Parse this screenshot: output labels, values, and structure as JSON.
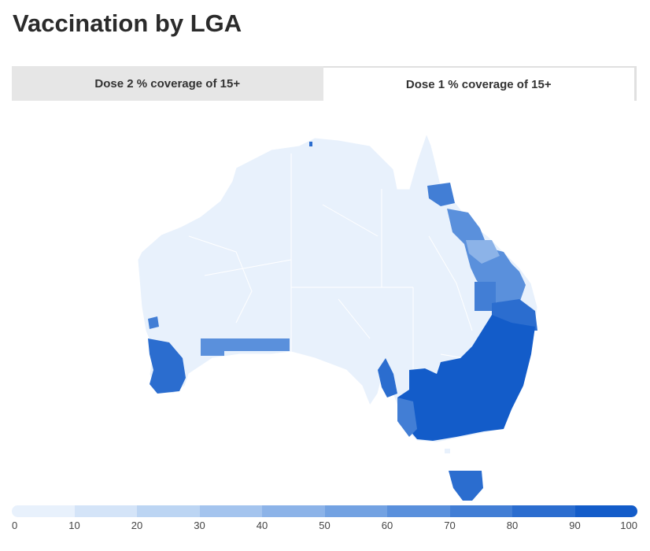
{
  "title": "Vaccination by LGA",
  "tabs": [
    {
      "label": "Dose 2 % coverage of 15+",
      "selected": false
    },
    {
      "label": "Dose 1 % coverage of 15+",
      "selected": true
    }
  ],
  "legend": {
    "ticks": [
      "0",
      "10",
      "20",
      "30",
      "40",
      "50",
      "60",
      "70",
      "80",
      "90",
      "100"
    ],
    "colors": [
      "#e8f1fc",
      "#d4e4f8",
      "#bcd5f3",
      "#a4c4ee",
      "#8cb3e8",
      "#73a2e2",
      "#5a90dc",
      "#427ed5",
      "#2b6dcf",
      "#135cc9"
    ]
  },
  "colors": {
    "land_base": "#e8f1fc",
    "boundary": "#ffffff"
  }
}
